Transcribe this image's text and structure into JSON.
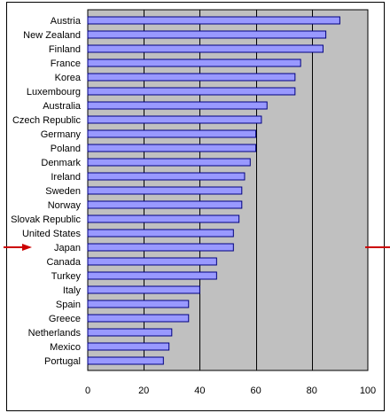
{
  "chart_data": {
    "type": "bar",
    "orientation": "horizontal",
    "categories": [
      "Austria",
      "New Zealand",
      "Finland",
      "France",
      "Korea",
      "Luxembourg",
      "Australia",
      "Czech Republic",
      "Germany",
      "Poland",
      "Denmark",
      "Ireland",
      "Sweden",
      "Norway",
      "Slovak Republic",
      "United States",
      "Japan",
      "Canada",
      "Turkey",
      "Italy",
      "Spain",
      "Greece",
      "Netherlands",
      "Mexico",
      "Portugal"
    ],
    "values": [
      90,
      85,
      84,
      76,
      74,
      74,
      64,
      62,
      60,
      60,
      58,
      56,
      55,
      55,
      54,
      52,
      52,
      46,
      46,
      40,
      36,
      36,
      30,
      29,
      27
    ],
    "xlim": [
      0,
      100
    ],
    "xticks": [
      "0",
      "20",
      "40",
      "60",
      "80",
      "100"
    ],
    "title": "",
    "xlabel": "",
    "ylabel": "",
    "grid": "vertical",
    "highlighted_category": "Japan",
    "colors": {
      "bar_fill": "#9999ff",
      "bar_stroke": "#000080",
      "plot_background": "#c0c0c0",
      "gridline": "#000000",
      "highlight_arrow": "#cc0000"
    }
  }
}
